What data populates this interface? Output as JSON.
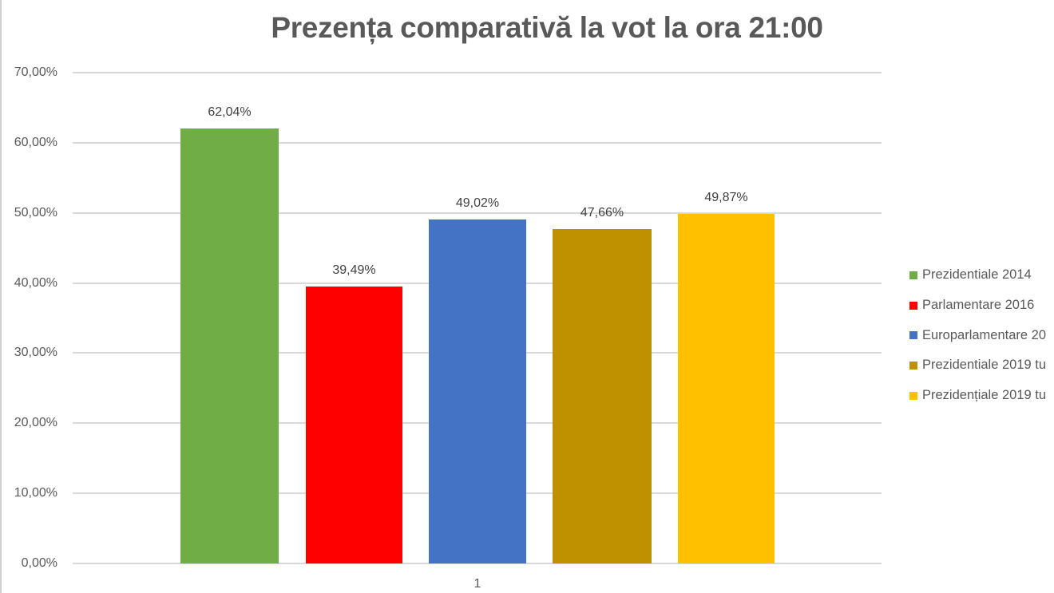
{
  "chart_data": {
    "type": "bar",
    "title": "Prezența comparativă la vot la ora 21:00",
    "xlabel": "",
    "ylabel": "",
    "categories": [
      "1"
    ],
    "series": [
      {
        "name": "Prezidentiale 2014",
        "values": [
          62.04
        ],
        "label": "62,04%",
        "color": "#70ad47"
      },
      {
        "name": "Parlamentare 2016",
        "values": [
          39.49
        ],
        "label": "39,49%",
        "color": "#ff0000"
      },
      {
        "name": "Europarlamentare 20…",
        "values": [
          49.02
        ],
        "label": "49,02%",
        "color": "#4472c4"
      },
      {
        "name": "Prezidentiale 2019 tu…",
        "values": [
          47.66
        ],
        "label": "47,66%",
        "color": "#bf9000"
      },
      {
        "name": "Prezidențiale 2019 tu…",
        "values": [
          49.87
        ],
        "label": "49,87%",
        "color": "#ffc000"
      }
    ],
    "ylim": [
      0,
      70
    ],
    "yticks": [
      "0,00%",
      "10,00%",
      "20,00%",
      "30,00%",
      "40,00%",
      "50,00%",
      "60,00%",
      "70,00%"
    ],
    "grid": true,
    "legend_position": "right"
  }
}
